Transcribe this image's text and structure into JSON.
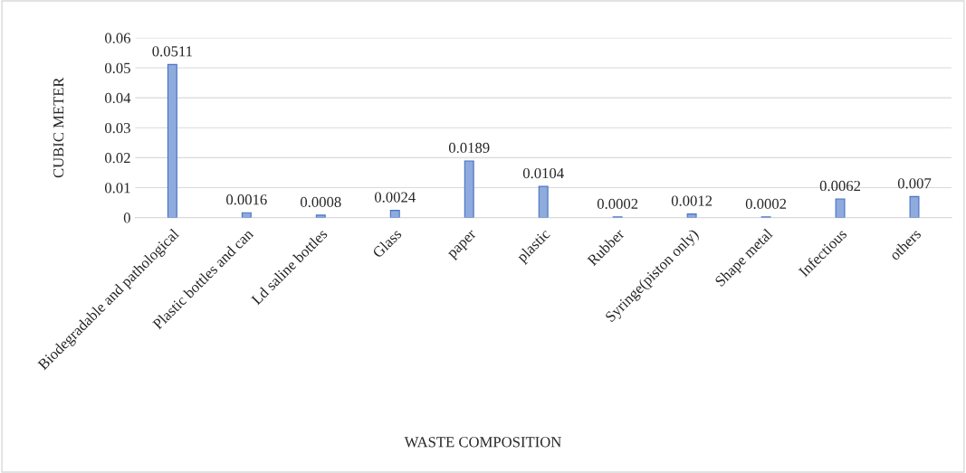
{
  "chart_data": {
    "type": "bar",
    "xlabel": "WASTE COMPOSITION",
    "ylabel": "CUBIC METER",
    "categories": [
      "Biodegradable and pathological",
      "Plastic bottles and can",
      "Ld saline bottles",
      "Glass",
      "paper",
      "plastic",
      "Rubber",
      "Syringe(piston only)",
      "Shape metal",
      "Infectious",
      "others"
    ],
    "values": [
      0.0511,
      0.0016,
      0.0008,
      0.0024,
      0.0189,
      0.0104,
      0.0002,
      0.0012,
      0.0002,
      0.0062,
      0.007
    ],
    "color": "#8faadc",
    "ylim": [
      0,
      0.06
    ],
    "yticks": [
      {
        "value": 0,
        "label": "0"
      },
      0.01,
      0.02,
      0.03,
      0.04,
      0.05,
      0.06
    ],
    "grid": "y",
    "data_labels": true,
    "legend": false
  }
}
